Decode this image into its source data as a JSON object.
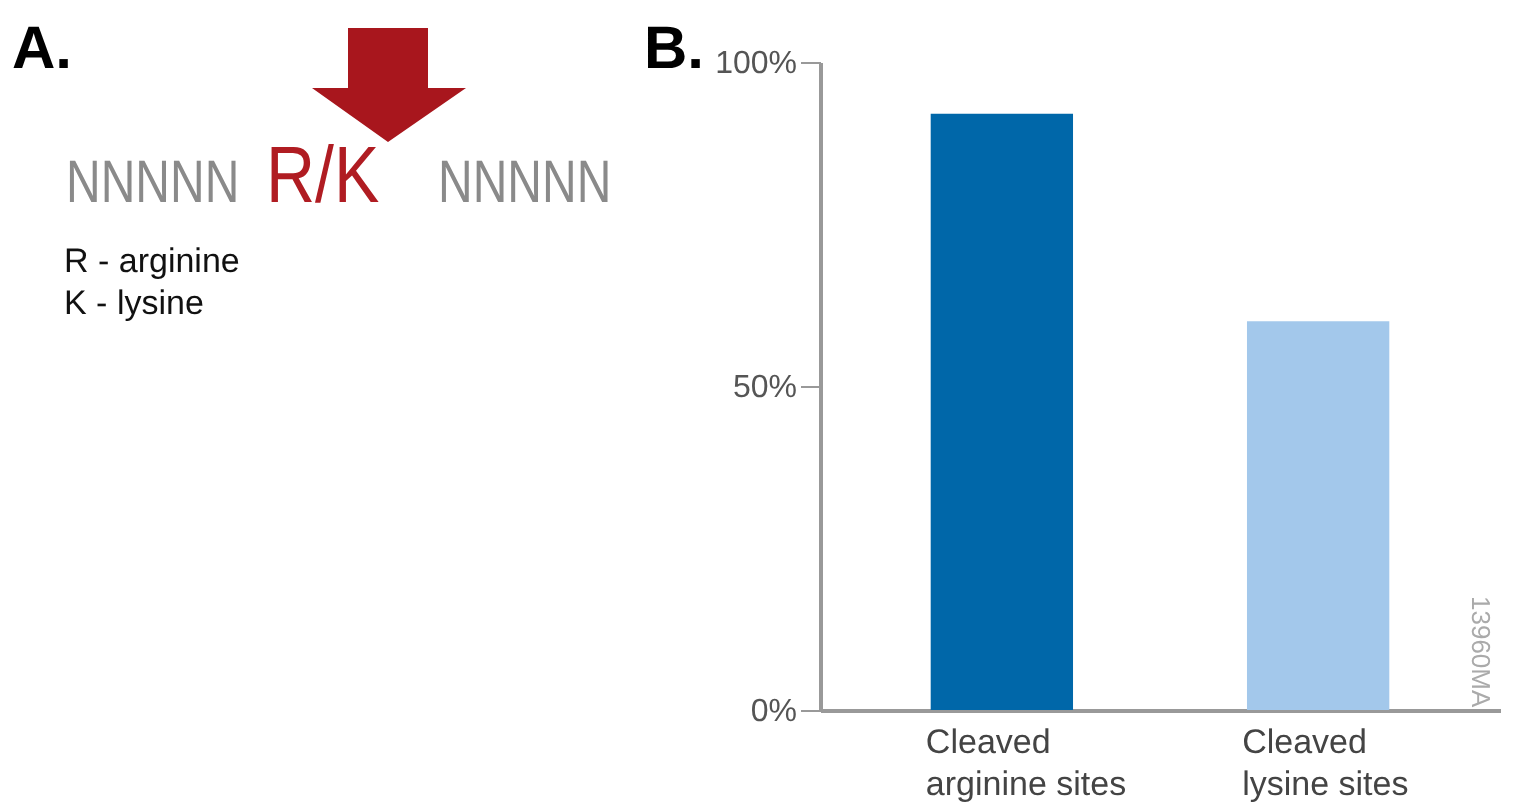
{
  "chart_data": [
    {
      "type": "other",
      "title": "A.",
      "annotations": [
        "NNNNN",
        "R/K",
        "NNNNN",
        "R - arginine",
        "K - lysine"
      ]
    },
    {
      "type": "bar",
      "title": "B.",
      "categories": [
        "Cleaved arginine sites",
        "Cleaved lysine sites"
      ],
      "values": [
        92,
        60
      ],
      "colors": [
        "#0067a9",
        "#a3c8eb"
      ],
      "ylim": [
        0,
        100
      ],
      "yticks": [
        {
          "value": 0,
          "label": "0%"
        },
        {
          "value": 50,
          "label": "50%"
        },
        {
          "value": 100,
          "label": "100%"
        }
      ],
      "grid": false,
      "annotations": [
        "13960MA"
      ]
    }
  ]
}
